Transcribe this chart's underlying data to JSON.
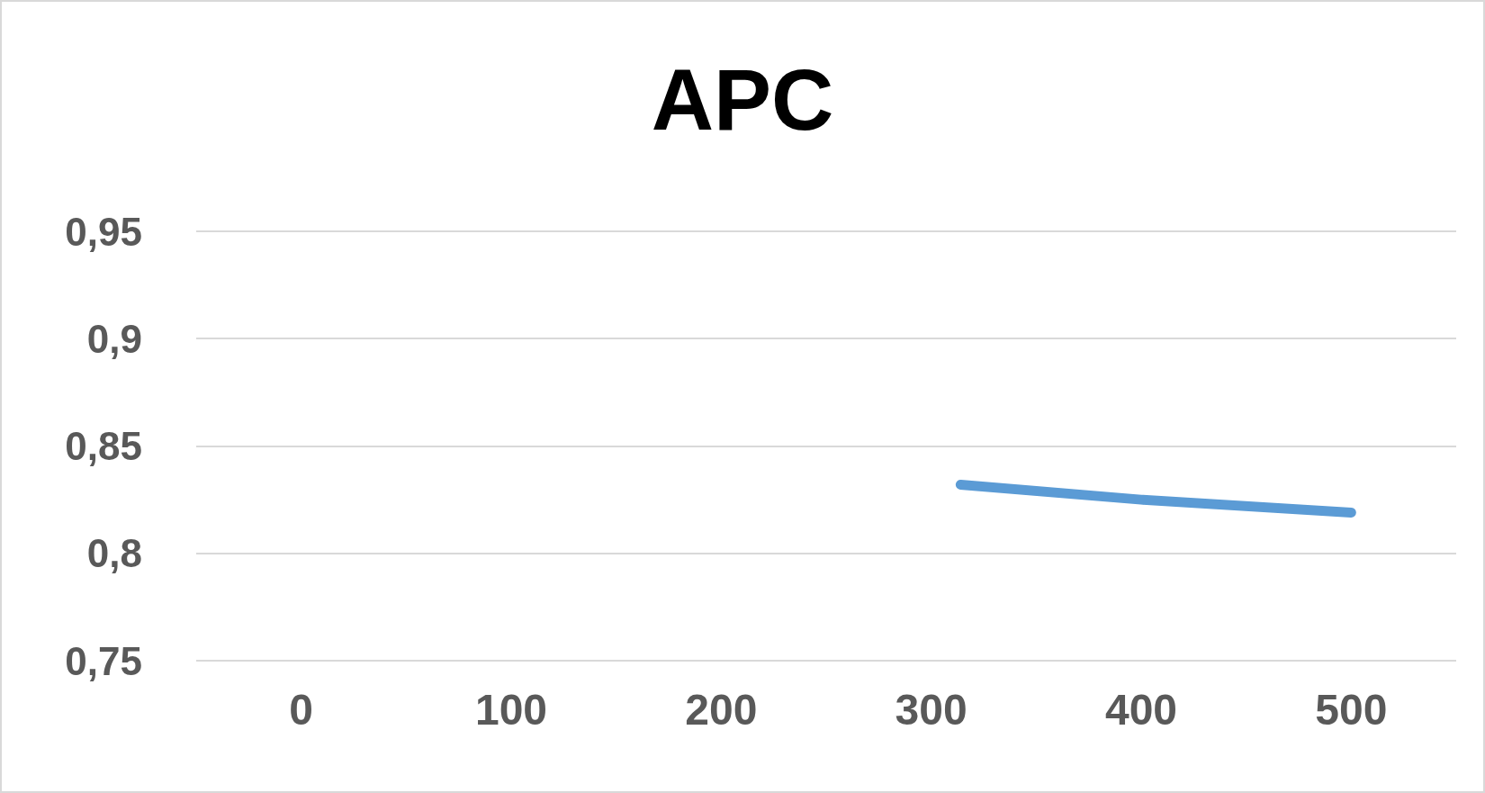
{
  "chart_data": {
    "type": "line",
    "title": "APC",
    "series": [
      {
        "color": "#5b9bd5",
        "x": [
          314,
          400,
          500
        ],
        "values": [
          0.832,
          0.825,
          0.819
        ]
      }
    ],
    "xlim": [
      -50,
      550
    ],
    "xticks": [
      0,
      100,
      200,
      300,
      400,
      500
    ],
    "ylim": [
      0.75,
      0.95
    ],
    "yticks": [
      {
        "value": 0.75,
        "label": "0,75"
      },
      {
        "value": 0.8,
        "label": "0,8"
      },
      {
        "value": 0.85,
        "label": "0,85"
      },
      {
        "value": 0.9,
        "label": "0,9"
      },
      {
        "value": 0.95,
        "label": "0,95"
      }
    ],
    "grid": "y",
    "marker": "none",
    "line_style": "solid"
  }
}
